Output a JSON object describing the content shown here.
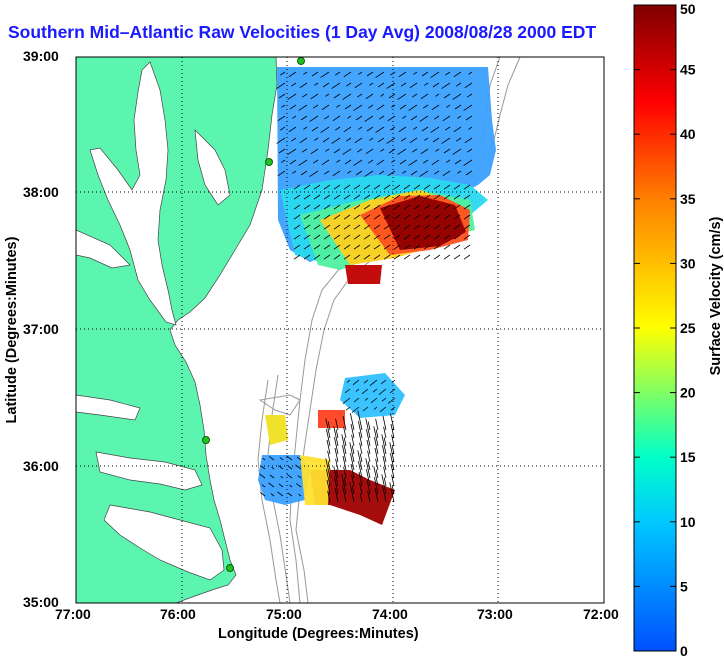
{
  "title": "Southern Mid–Atlantic Raw Velocities (1 Day Avg) 2008/08/28 2000 EDT",
  "xlabel": "Longitude (Degrees:Minutes)",
  "ylabel": "Latitude (Degrees:Minutes)",
  "x_ticks": [
    "77:00",
    "76:00",
    "75:00",
    "74:00",
    "73:00",
    "72:00"
  ],
  "y_ticks": [
    "39:00",
    "38:00",
    "37:00",
    "36:00",
    "35:00"
  ],
  "colorbar": {
    "label": "Surface Velocity (cm/s)",
    "ticks": [
      "0",
      "5",
      "10",
      "15",
      "20",
      "25",
      "30",
      "35",
      "40",
      "45",
      "50"
    ],
    "range": [
      0,
      50
    ],
    "colors": [
      "#0050ff",
      "#00c8ff",
      "#00ffc8",
      "#ffff00",
      "#ff7f00",
      "#ff0000",
      "#7f0000"
    ]
  },
  "map_colors": {
    "land": "#5cf5b0",
    "ocean": "#ffffff",
    "station": "#22c020"
  }
}
